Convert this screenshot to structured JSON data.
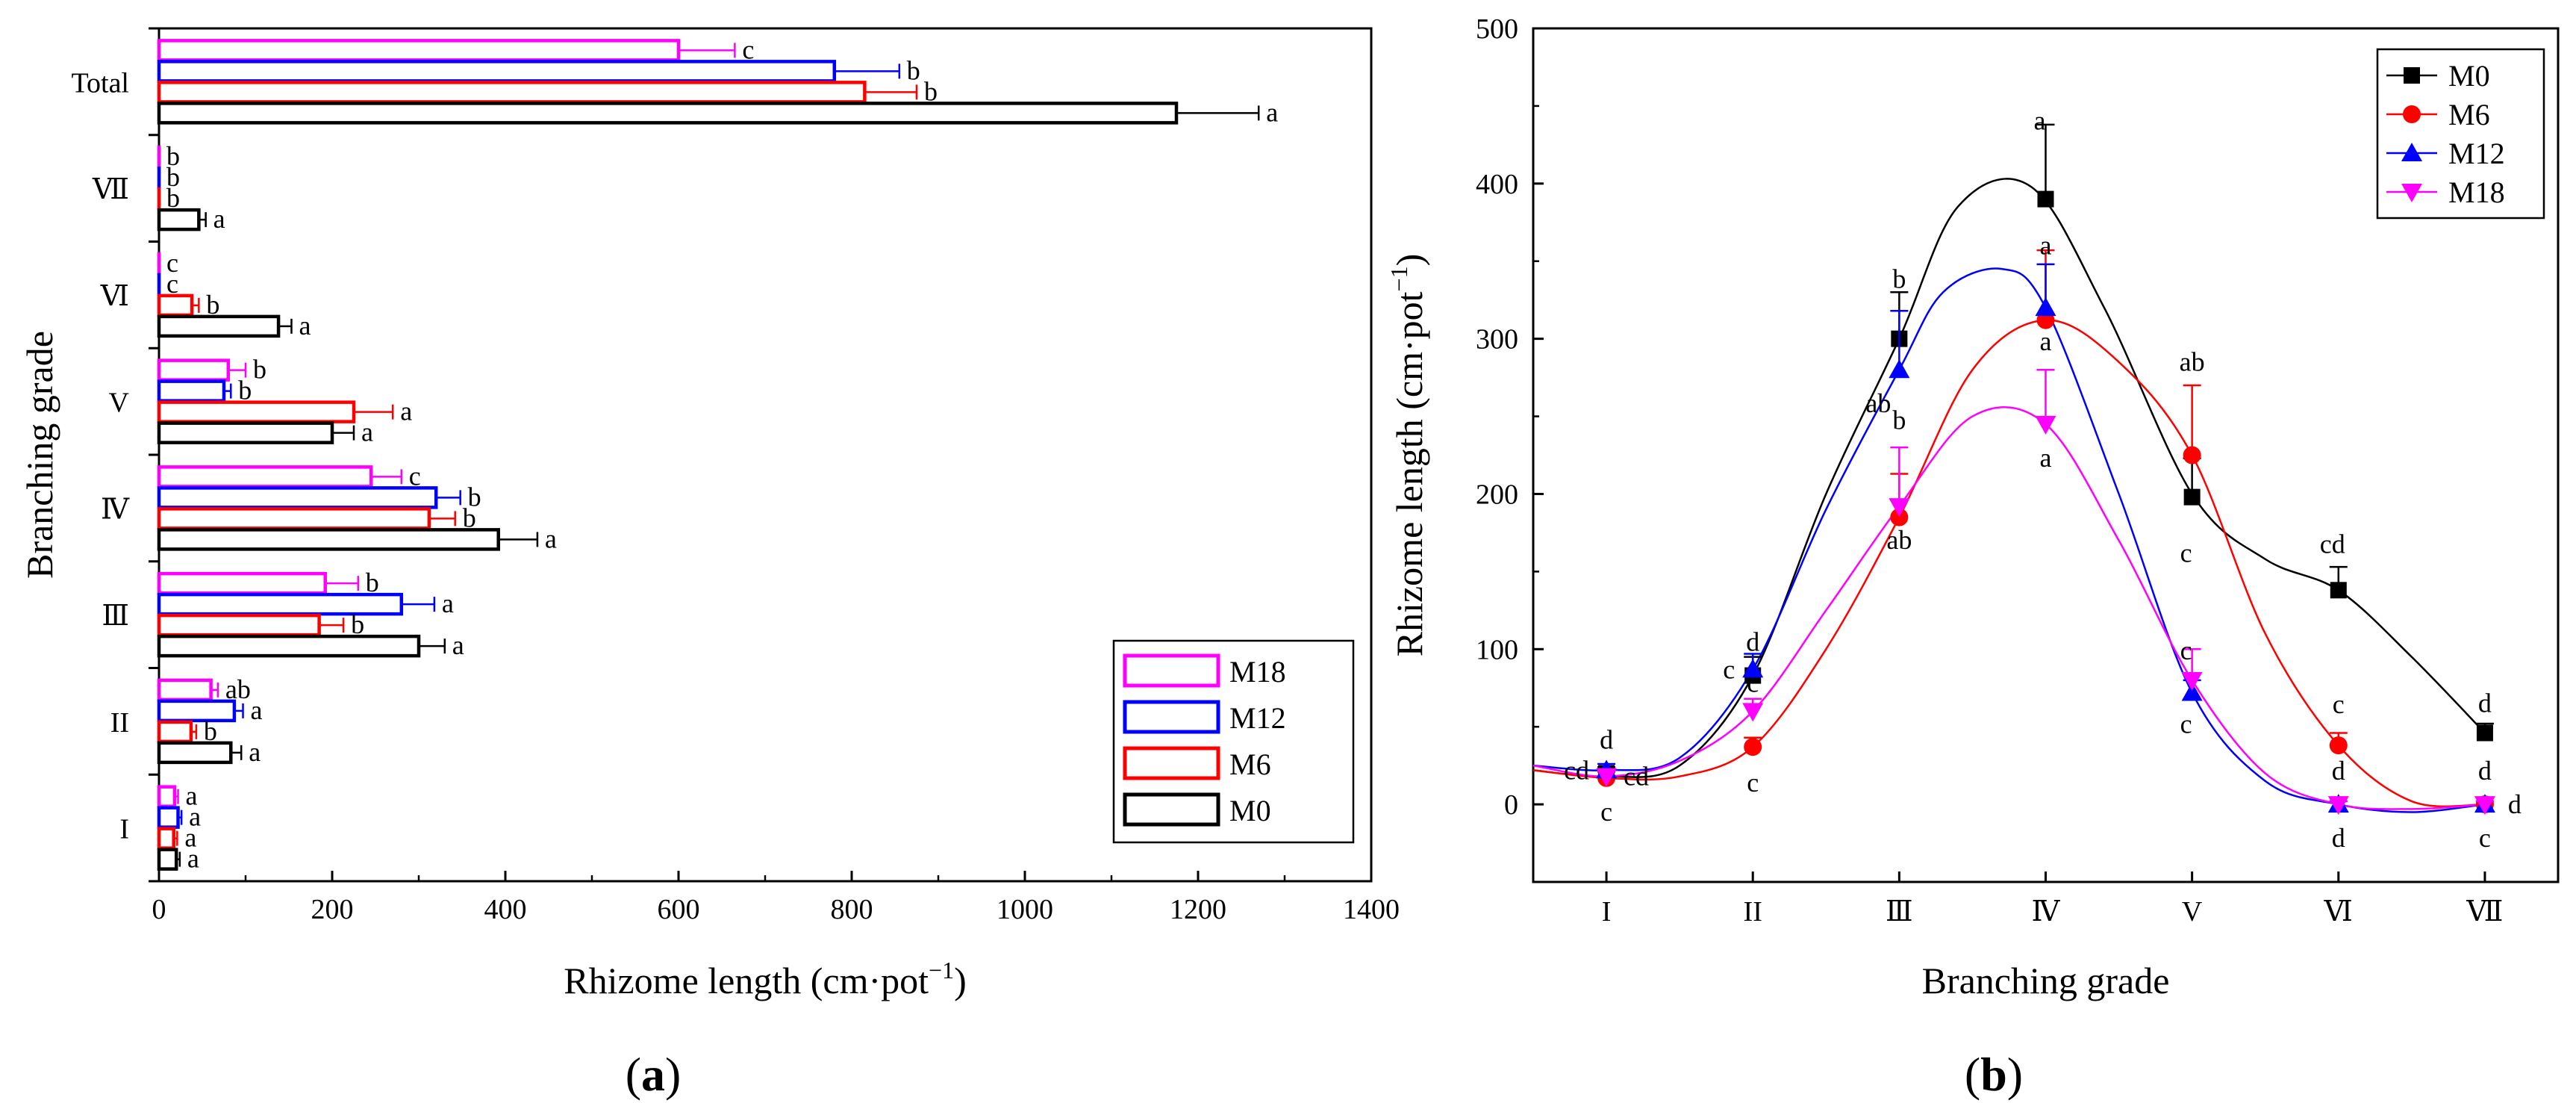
{
  "figure": {
    "panel_a_label_bold": "a",
    "panel_b_label_bold": "b",
    "paren_open": "(",
    "paren_close": ")"
  },
  "colors": {
    "M0": "#000000",
    "M6": "#ff0000",
    "M12": "#0000ff",
    "M18": "#ff00ff"
  },
  "chart_data": [
    {
      "id": "a",
      "type": "bar",
      "orientation": "horizontal",
      "xlabel_main": "Rhizome length",
      "xlabel_unit_base": "cm·pot",
      "xlabel_unit_sup": "−1",
      "ylabel": "Branching grade",
      "xlim": [
        0,
        1400
      ],
      "xticks": [
        "0",
        "200",
        "400",
        "600",
        "800",
        "1000",
        "1200",
        "1400"
      ],
      "categories": [
        "I",
        "II",
        "Ⅲ",
        "Ⅳ",
        "V",
        "Ⅵ",
        "Ⅶ",
        "Total"
      ],
      "legend_order": [
        "M18",
        "M12",
        "M6",
        "M0"
      ],
      "series": [
        {
          "name": "M0",
          "values": [
            20,
            83,
            300,
            392,
            200,
            138,
            46,
            1175
          ],
          "errors": [
            4,
            12,
            30,
            45,
            25,
            15,
            8,
            95
          ],
          "letters": [
            "a",
            "a",
            "a",
            "a",
            "a",
            "a",
            "a",
            "a"
          ]
        },
        {
          "name": "M6",
          "values": [
            17,
            37,
            185,
            312,
            225,
            38,
            0,
            815
          ],
          "errors": [
            4,
            6,
            28,
            30,
            45,
            8,
            0,
            60
          ],
          "letters": [
            "a",
            "b",
            "b",
            "b",
            "a",
            "b",
            "b",
            "b"
          ]
        },
        {
          "name": "M12",
          "values": [
            22,
            87,
            280,
            320,
            75,
            0,
            0,
            780
          ],
          "errors": [
            4,
            10,
            38,
            28,
            8,
            0,
            0,
            75
          ],
          "letters": [
            "a",
            "a",
            "a",
            "b",
            "b",
            "c",
            "b",
            "b"
          ]
        },
        {
          "name": "M18",
          "values": [
            18,
            60,
            192,
            245,
            80,
            0,
            0,
            600
          ],
          "errors": [
            4,
            8,
            38,
            35,
            20,
            0,
            0,
            65
          ],
          "letters": [
            "a",
            "ab",
            "b",
            "c",
            "b",
            "c",
            "b",
            "c"
          ]
        }
      ]
    },
    {
      "id": "b",
      "type": "scatter",
      "xlabel": "Branching grade",
      "ylabel_main": "Rhizome length",
      "ylabel_unit_base": "cm·pot",
      "ylabel_unit_sup": "−1",
      "ylim": [
        -50,
        500
      ],
      "yticks": [
        "0",
        "100",
        "200",
        "300",
        "400",
        "500"
      ],
      "categories": [
        "I",
        "II",
        "Ⅲ",
        "Ⅳ",
        "V",
        "Ⅵ",
        "Ⅶ"
      ],
      "legend_order": [
        "M0",
        "M6",
        "M12",
        "M18"
      ],
      "series": [
        {
          "name": "M0",
          "marker": "square",
          "values": [
            20,
            83,
            300,
            390,
            198,
            138,
            46
          ],
          "errors": [
            4,
            12,
            30,
            48,
            25,
            15,
            6
          ],
          "fit": [
            [
              0.5,
              22
            ],
            [
              1,
              18
            ],
            [
              1.5,
              25
            ],
            [
              2,
              83
            ],
            [
              2.5,
              200
            ],
            [
              3,
              300
            ],
            [
              3.4,
              385
            ],
            [
              3.9,
              398
            ],
            [
              4.4,
              320
            ],
            [
              5,
              200
            ],
            [
              5.5,
              158
            ],
            [
              6,
              138
            ],
            [
              6.5,
              95
            ],
            [
              7,
              46
            ]
          ],
          "letters": [
            {
              "i": 0,
              "t": "d",
              "dx": 0,
              "dy": -45
            },
            {
              "i": 1,
              "t": "d",
              "dx": 0,
              "dy": -45
            },
            {
              "i": 2,
              "t": "b",
              "dx": 0,
              "dy": -80
            },
            {
              "i": 3,
              "t": "a",
              "dx": -8,
              "dy": -105
            },
            {
              "i": 4,
              "t": "c",
              "dx": -8,
              "dy": 75
            },
            {
              "i": 5,
              "t": "cd",
              "dx": -8,
              "dy": -62
            },
            {
              "i": 6,
              "t": "d",
              "dx": 0,
              "dy": -40
            }
          ]
        },
        {
          "name": "M6",
          "marker": "circle",
          "values": [
            17,
            37,
            185,
            312,
            225,
            38,
            0
          ],
          "errors": [
            4,
            6,
            28,
            45,
            45,
            8,
            2
          ],
          "fit": [
            [
              0.5,
              22
            ],
            [
              1,
              17
            ],
            [
              1.5,
              18
            ],
            [
              2,
              37
            ],
            [
              2.5,
              100
            ],
            [
              3,
              185
            ],
            [
              3.5,
              280
            ],
            [
              4,
              312
            ],
            [
              4.5,
              285
            ],
            [
              5,
              225
            ],
            [
              5.5,
              110
            ],
            [
              6,
              38
            ],
            [
              6.5,
              2
            ],
            [
              7,
              0
            ]
          ],
          "letters": [
            {
              "i": 0,
              "t": "c",
              "dx": 0,
              "dy": 45
            },
            {
              "i": 1,
              "t": "c",
              "dx": 0,
              "dy": 48
            },
            {
              "i": 2,
              "t": "b",
              "dx": 0,
              "dy": -130
            },
            {
              "i": 3,
              "t": "a",
              "dx": 0,
              "dy": -100
            },
            {
              "i": 4,
              "t": "ab",
              "dx": 0,
              "dy": -125
            },
            {
              "i": 5,
              "t": "c",
              "dx": 0,
              "dy": -55
            },
            {
              "i": 6,
              "t": "c",
              "dx": 0,
              "dy": 45
            }
          ]
        },
        {
          "name": "M12",
          "marker": "triangle",
          "values": [
            22,
            87,
            280,
            320,
            72,
            0,
            0
          ],
          "errors": [
            4,
            10,
            38,
            28,
            8,
            2,
            2
          ],
          "fit": [
            [
              0.5,
              25
            ],
            [
              1,
              22
            ],
            [
              1.5,
              30
            ],
            [
              2,
              87
            ],
            [
              2.5,
              190
            ],
            [
              3,
              280
            ],
            [
              3.3,
              330
            ],
            [
              3.7,
              345
            ],
            [
              4,
              320
            ],
            [
              4.5,
              200
            ],
            [
              5,
              72
            ],
            [
              5.5,
              15
            ],
            [
              6,
              0
            ],
            [
              6.5,
              -5
            ],
            [
              7,
              0
            ]
          ],
          "letters": [
            {
              "i": 0,
              "t": "cd",
              "dx": -40,
              "dy": 0
            },
            {
              "i": 1,
              "t": "c",
              "dx": -32,
              "dy": 0
            },
            {
              "i": 2,
              "t": "ab",
              "dx": -28,
              "dy": 45
            },
            {
              "i": 3,
              "t": "a",
              "dx": 0,
              "dy": 45
            },
            {
              "i": 4,
              "t": "c",
              "dx": -8,
              "dy": 42
            },
            {
              "i": 5,
              "t": "d",
              "dx": 0,
              "dy": -45
            },
            {
              "i": 6,
              "t": "d",
              "dx": 0,
              "dy": -45
            }
          ]
        },
        {
          "name": "M18",
          "marker": "triangle-down",
          "values": [
            18,
            60,
            192,
            245,
            80,
            0,
            0
          ],
          "errors": [
            4,
            8,
            38,
            35,
            20,
            2,
            2
          ],
          "fit": [
            [
              0.5,
              25
            ],
            [
              1,
              18
            ],
            [
              1.5,
              28
            ],
            [
              2,
              60
            ],
            [
              2.5,
              125
            ],
            [
              3,
              192
            ],
            [
              3.5,
              250
            ],
            [
              4,
              245
            ],
            [
              4.5,
              170
            ],
            [
              5,
              80
            ],
            [
              5.5,
              20
            ],
            [
              6,
              0
            ],
            [
              6.5,
              -3
            ],
            [
              7,
              0
            ]
          ],
          "letters": [
            {
              "i": 0,
              "t": "cd",
              "dx": 40,
              "dy": 0
            },
            {
              "i": 1,
              "t": "c",
              "dx": 0,
              "dy": -38
            },
            {
              "i": 2,
              "t": "ab",
              "dx": 0,
              "dy": 45
            },
            {
              "i": 3,
              "t": "a",
              "dx": 0,
              "dy": 45
            },
            {
              "i": 4,
              "t": "c",
              "dx": -8,
              "dy": -40
            },
            {
              "i": 5,
              "t": "d",
              "dx": 0,
              "dy": 45
            },
            {
              "i": 6,
              "t": "d",
              "dx": 40,
              "dy": 0
            }
          ]
        }
      ]
    }
  ]
}
